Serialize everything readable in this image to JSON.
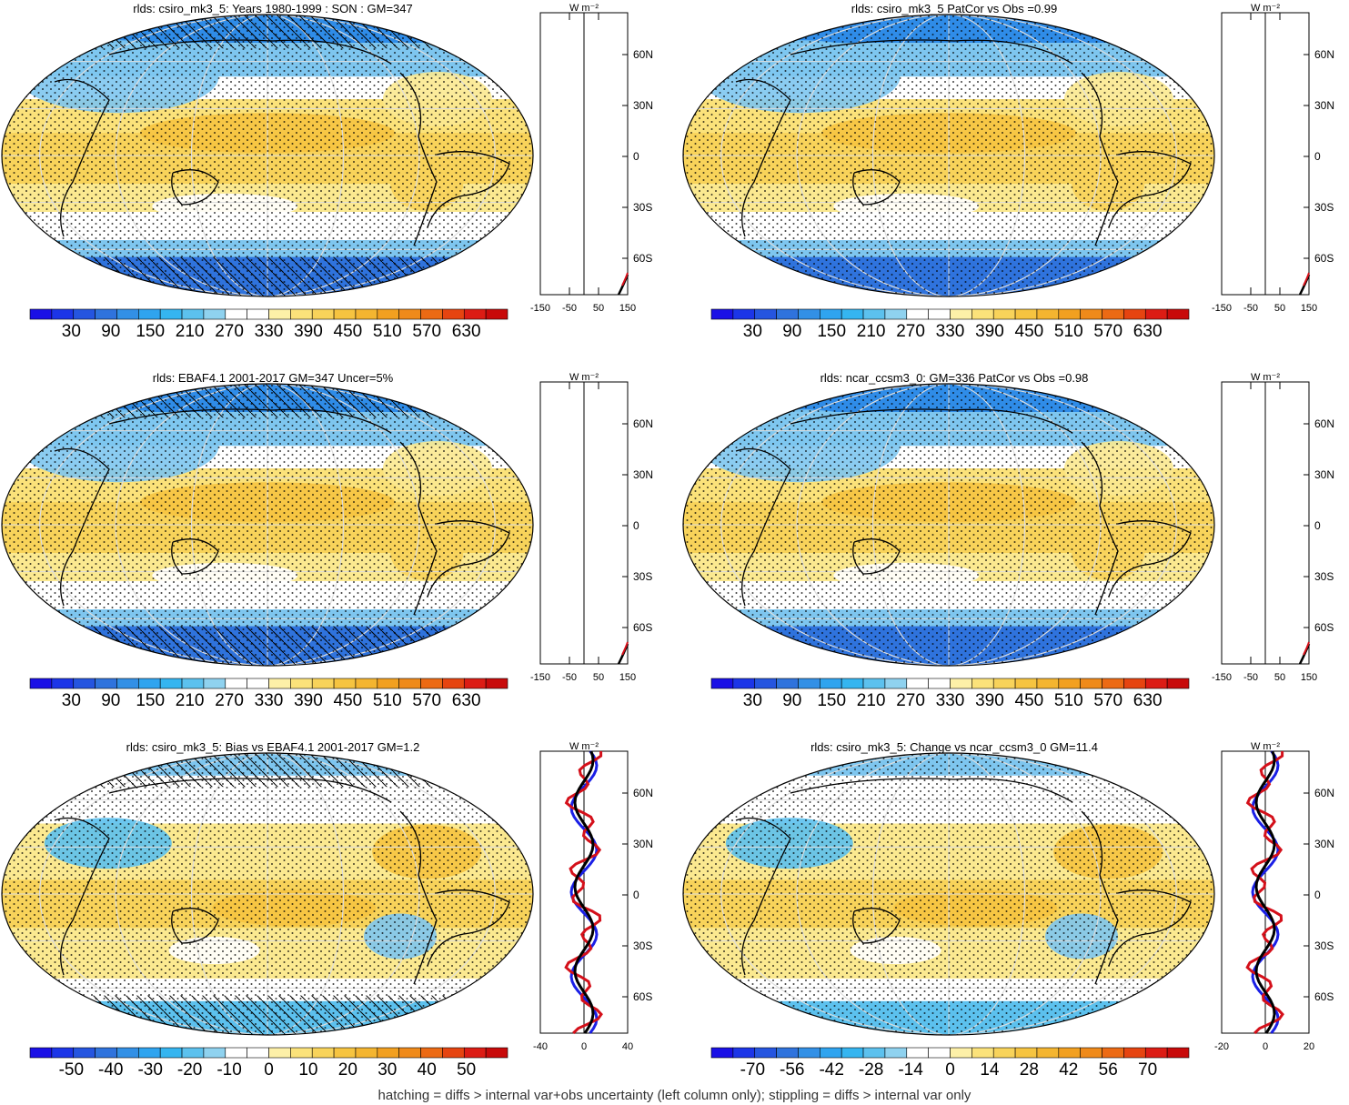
{
  "colors": {
    "deep_blue": "#1a1fe6",
    "mid_blue": "#2f8ce8",
    "light_blue": "#7ec6ef",
    "white": "#ffffff",
    "light_yellow": "#fbe990",
    "yellow": "#f6cc45",
    "orange": "#ef8a1f",
    "red": "#d4101a",
    "land": "#000000"
  },
  "colorbar_fill": [
    "#1a10e6",
    "#1c35e8",
    "#2555e0",
    "#2f73dd",
    "#3290e6",
    "#2fa4ef",
    "#35b5f0",
    "#5cc1ee",
    "#8fd2ef",
    "#ffffff",
    "#ffffff",
    "#fdf0a8",
    "#fbe27a",
    "#f8d35a",
    "#f6c440",
    "#f4b530",
    "#f2a020",
    "#ef8a1a",
    "#ec6a14",
    "#e64410",
    "#dc1c14",
    "#c80a0a"
  ],
  "panels": [
    {
      "id": "top-left",
      "title": "rlds: csiro_mk3_5: Years 1980-1999 : SON : GM=347",
      "colorbar_labels": [
        "30",
        "90",
        "150",
        "210",
        "270",
        "330",
        "390",
        "450",
        "510",
        "570",
        "630"
      ],
      "zonal_ticks": [
        "-150",
        "-50",
        "50",
        "150"
      ],
      "zonal_units": "W m⁻²",
      "lat_labels": [
        "60N",
        "30N",
        "0",
        "30S",
        "60S"
      ]
    },
    {
      "id": "top-right",
      "title": "rlds: csiro_mk3_5 PatCor vs Obs =0.99",
      "colorbar_labels": [
        "30",
        "90",
        "150",
        "210",
        "270",
        "330",
        "390",
        "450",
        "510",
        "570",
        "630"
      ],
      "zonal_ticks": [
        "-150",
        "-50",
        "50",
        "150"
      ],
      "zonal_units": "W m⁻²",
      "lat_labels": [
        "60N",
        "30N",
        "0",
        "30S",
        "60S"
      ]
    },
    {
      "id": "mid-left",
      "title": "rlds: EBAF4.1 2001-2017 GM=347 Uncer=5%",
      "colorbar_labels": [
        "30",
        "90",
        "150",
        "210",
        "270",
        "330",
        "390",
        "450",
        "510",
        "570",
        "630"
      ],
      "zonal_ticks": [
        "-150",
        "-50",
        "50",
        "150"
      ],
      "zonal_units": "W m⁻²",
      "lat_labels": [
        "60N",
        "30N",
        "0",
        "30S",
        "60S"
      ]
    },
    {
      "id": "mid-right",
      "title": "rlds: ncar_ccsm3_0: GM=336 PatCor vs Obs =0.98",
      "colorbar_labels": [
        "30",
        "90",
        "150",
        "210",
        "270",
        "330",
        "390",
        "450",
        "510",
        "570",
        "630"
      ],
      "zonal_ticks": [
        "-150",
        "-50",
        "50",
        "150"
      ],
      "zonal_units": "W m⁻²",
      "lat_labels": [
        "60N",
        "30N",
        "0",
        "30S",
        "60S"
      ]
    },
    {
      "id": "bottom-left",
      "title": "rlds: csiro_mk3_5: Bias vs EBAF4.1 2001-2017  GM=1.2",
      "colorbar_labels": [
        "-50",
        "-40",
        "-30",
        "-20",
        "-10",
        "0",
        "10",
        "20",
        "30",
        "40",
        "50"
      ],
      "zonal_ticks": [
        "-40",
        "0",
        "40"
      ],
      "zonal_units": "W m⁻²",
      "lat_labels": [
        "60N",
        "30N",
        "0",
        "30S",
        "60S"
      ]
    },
    {
      "id": "bottom-right",
      "title": "rlds: csiro_mk3_5: Change vs ncar_ccsm3_0 GM=11.4",
      "colorbar_labels": [
        "-70",
        "-56",
        "-42",
        "-28",
        "-14",
        "0",
        "14",
        "28",
        "42",
        "56",
        "70"
      ],
      "zonal_ticks": [
        "-20",
        "0",
        "20"
      ],
      "zonal_units": "W m⁻²",
      "lat_labels": [
        "60N",
        "30N",
        "0",
        "30S",
        "60S"
      ]
    }
  ],
  "footer": "hatching = diffs > internal var+obs uncertainty (left column only); stippling = diffs > internal var only"
}
